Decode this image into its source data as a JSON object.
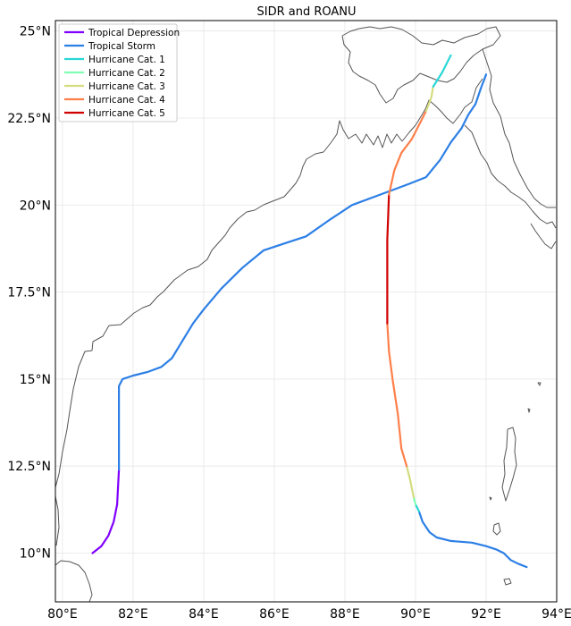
{
  "title": "SIDR and ROANU",
  "map_extent": {
    "lon_min": 79.8,
    "lon_max": 94.0,
    "lat_min": 8.6,
    "lat_max": 25.3
  },
  "x_ticks": [
    {
      "value": 80,
      "label": "80°E"
    },
    {
      "value": 82,
      "label": "82°E"
    },
    {
      "value": 84,
      "label": "84°E"
    },
    {
      "value": 86,
      "label": "86°E"
    },
    {
      "value": 88,
      "label": "88°E"
    },
    {
      "value": 90,
      "label": "90°E"
    },
    {
      "value": 92,
      "label": "92°E"
    },
    {
      "value": 94,
      "label": "94°E"
    }
  ],
  "y_ticks": [
    {
      "value": 10,
      "label": "10°N"
    },
    {
      "value": 12.5,
      "label": "12.5°N"
    },
    {
      "value": 15,
      "label": "15°N"
    },
    {
      "value": 17.5,
      "label": "17.5°N"
    },
    {
      "value": 20,
      "label": "20°N"
    },
    {
      "value": 22.5,
      "label": "22.5°N"
    },
    {
      "value": 25,
      "label": "25°N"
    }
  ],
  "legend": [
    {
      "label": "Tropical Depression",
      "color": "#8000ff"
    },
    {
      "label": "Tropical Storm",
      "color": "#2c7fe6"
    },
    {
      "label": "Hurricane Cat. 1",
      "color": "#2ad6d6"
    },
    {
      "label": "Hurricane Cat. 2",
      "color": "#80ffb4"
    },
    {
      "label": "Hurricane Cat. 3",
      "color": "#d4dc7f"
    },
    {
      "label": "Hurricane Cat. 4",
      "color": "#ff7f4a"
    },
    {
      "label": "Hurricane Cat. 5",
      "color": "#d00000"
    }
  ],
  "chart_data": {
    "type": "map-tracks",
    "grid": true,
    "legend_position": "top-left",
    "tracks": [
      {
        "segments": [
          {
            "category": "Tropical Depression",
            "points": [
              [
                80.85,
                10.0
              ],
              [
                81.1,
                10.2
              ],
              [
                81.3,
                10.5
              ],
              [
                81.45,
                10.9
              ],
              [
                81.55,
                11.4
              ],
              [
                81.6,
                12.4
              ]
            ]
          },
          {
            "category": "Tropical Storm",
            "points": [
              [
                81.6,
                12.4
              ],
              [
                81.6,
                14.8
              ],
              [
                81.7,
                15.0
              ],
              [
                82.0,
                15.1
              ],
              [
                82.4,
                15.2
              ],
              [
                82.8,
                15.35
              ],
              [
                83.1,
                15.6
              ],
              [
                83.4,
                16.1
              ],
              [
                83.7,
                16.6
              ],
              [
                84.0,
                17.0
              ],
              [
                84.5,
                17.6
              ],
              [
                85.1,
                18.2
              ],
              [
                85.7,
                18.7
              ],
              [
                86.3,
                18.9
              ],
              [
                86.9,
                19.1
              ],
              [
                87.6,
                19.6
              ],
              [
                88.2,
                20.0
              ],
              [
                89.0,
                20.3
              ],
              [
                89.8,
                20.6
              ],
              [
                90.3,
                20.8
              ],
              [
                90.7,
                21.3
              ],
              [
                91.0,
                21.8
              ],
              [
                91.3,
                22.2
              ],
              [
                91.5,
                22.6
              ],
              [
                91.7,
                22.9
              ],
              [
                91.85,
                23.35
              ],
              [
                92.0,
                23.75
              ]
            ]
          }
        ]
      },
      {
        "segments": [
          {
            "category": "Tropical Storm",
            "points": [
              [
                93.15,
                9.6
              ],
              [
                92.9,
                9.7
              ],
              [
                92.7,
                9.8
              ],
              [
                92.5,
                10.0
              ],
              [
                92.3,
                10.1
              ],
              [
                92.0,
                10.2
              ],
              [
                91.6,
                10.3
              ],
              [
                91.0,
                10.35
              ],
              [
                90.6,
                10.45
              ],
              [
                90.4,
                10.6
              ],
              [
                90.2,
                10.9
              ],
              [
                90.1,
                11.2
              ]
            ]
          },
          {
            "category": "Hurricane Cat. 1",
            "points": [
              [
                90.1,
                11.2
              ],
              [
                90.0,
                11.4
              ]
            ]
          },
          {
            "category": "Hurricane Cat. 2",
            "points": [
              [
                90.0,
                11.4
              ],
              [
                89.95,
                11.6
              ]
            ]
          },
          {
            "category": "Hurricane Cat. 3",
            "points": [
              [
                89.95,
                11.6
              ],
              [
                89.85,
                12.1
              ],
              [
                89.75,
                12.5
              ]
            ]
          },
          {
            "category": "Hurricane Cat. 4",
            "points": [
              [
                89.75,
                12.5
              ],
              [
                89.6,
                13.0
              ],
              [
                89.5,
                14.0
              ],
              [
                89.35,
                15.0
              ],
              [
                89.25,
                15.8
              ],
              [
                89.2,
                16.6
              ]
            ]
          },
          {
            "category": "Hurricane Cat. 5",
            "points": [
              [
                89.2,
                16.6
              ],
              [
                89.2,
                17.8
              ],
              [
                89.2,
                19.0
              ],
              [
                89.25,
                20.3
              ]
            ]
          },
          {
            "category": "Hurricane Cat. 4",
            "points": [
              [
                89.25,
                20.3
              ],
              [
                89.4,
                21.0
              ],
              [
                89.6,
                21.5
              ],
              [
                89.9,
                21.9
              ],
              [
                90.1,
                22.3
              ],
              [
                90.3,
                22.7
              ]
            ]
          },
          {
            "category": "Hurricane Cat. 3",
            "points": [
              [
                90.3,
                22.7
              ],
              [
                90.45,
                23.1
              ],
              [
                90.5,
                23.4
              ]
            ]
          },
          {
            "category": "Hurricane Cat. 1",
            "points": [
              [
                90.5,
                23.4
              ],
              [
                90.75,
                23.8
              ],
              [
                91.0,
                24.3
              ]
            ]
          }
        ]
      }
    ]
  }
}
